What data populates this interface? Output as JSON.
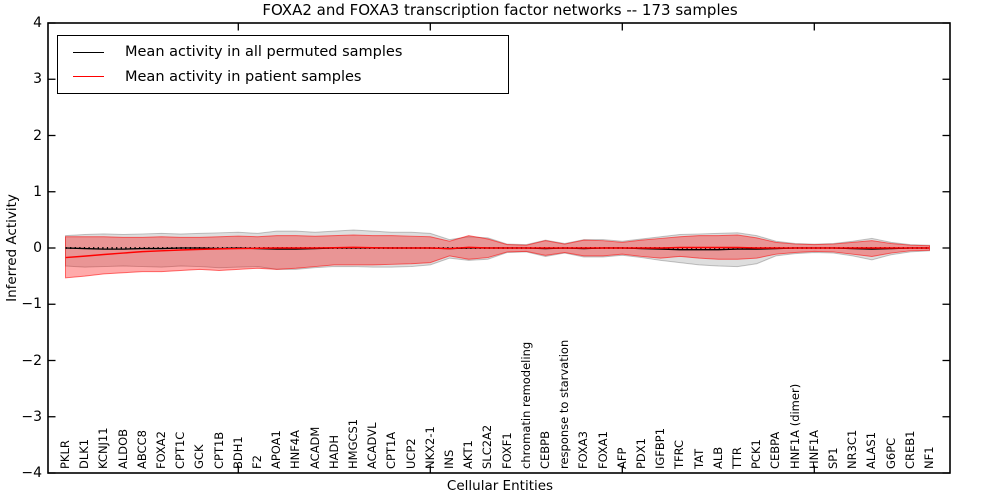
{
  "chart_data": {
    "type": "line",
    "title": "FOXA2 and FOXA3 transcription factor networks -- 173 samples",
    "xlabel": "Cellular Entities",
    "ylabel": "Inferred Activity",
    "ylim": [
      -4,
      4
    ],
    "grid": false,
    "legend_position": "upper left",
    "zero_line_dotted": true,
    "yticks": [
      {
        "v": 4,
        "label": "4"
      },
      {
        "v": 3,
        "label": "3"
      },
      {
        "v": 2,
        "label": "2"
      },
      {
        "v": 1,
        "label": "1"
      },
      {
        "v": 0,
        "label": "0"
      },
      {
        "v": -1,
        "label": "−1"
      },
      {
        "v": -2,
        "label": "−2"
      },
      {
        "v": -3,
        "label": "−3"
      },
      {
        "v": -4,
        "label": "−4"
      }
    ],
    "xticks_units": [
      10,
      20,
      30,
      40
    ],
    "categories": [
      "PKLR",
      "DLK1",
      "KCNJ11",
      "ALDOB",
      "ABCC8",
      "FOXA2",
      "CPT1C",
      "GCK",
      "CPT1B",
      "BDH1",
      "F2",
      "APOA1",
      "HNF4A",
      "ACADM",
      "HADH",
      "HMGCS1",
      "ACADVL",
      "CPT1A",
      "UCP2",
      "NKX2-1",
      "INS",
      "AKT1",
      "SLC2A2",
      "FOXF1",
      "chromatin remodeling",
      "CEBPB",
      "response to starvation",
      "FOXA3",
      "FOXA1",
      "AFP",
      "PDX1",
      "IGFBP1",
      "TFRC",
      "TAT",
      "ALB",
      "TTR",
      "PCK1",
      "CEBPA",
      "HNF1A (dimer)",
      "HNF1A",
      "SP1",
      "NR3C1",
      "ALAS1",
      "G6PC",
      "CREB1",
      "NF1"
    ],
    "series": [
      {
        "name": "Mean activity in all permuted samples",
        "color": "#000000",
        "width": 1.3,
        "values": [
          0,
          -0.01,
          -0.02,
          -0.02,
          -0.01,
          -0.01,
          0,
          0,
          -0.01,
          0,
          -0.01,
          -0.02,
          -0.02,
          -0.01,
          0,
          0,
          0,
          0,
          0,
          0,
          -0.01,
          0,
          0,
          0,
          0,
          -0.01,
          0,
          -0.01,
          0,
          0,
          -0.01,
          -0.02,
          -0.03,
          -0.03,
          -0.03,
          -0.02,
          -0.02,
          -0.01,
          0,
          0,
          0,
          -0.01,
          -0.02,
          -0.01,
          0,
          0
        ]
      },
      {
        "name": "Mean activity in patient samples",
        "color": "#ff0000",
        "width": 1.5,
        "values": [
          -0.17,
          -0.145,
          -0.115,
          -0.09,
          -0.065,
          -0.05,
          -0.035,
          -0.025,
          -0.015,
          -0.01,
          -0.005,
          0,
          0,
          0,
          0.005,
          0.01,
          0.005,
          0,
          0,
          0,
          -0.01,
          0.01,
          0,
          0,
          0,
          0,
          0,
          0,
          0,
          0,
          0,
          0,
          0.01,
          0.01,
          0.01,
          0.01,
          0,
          0,
          0,
          0,
          0,
          0,
          0,
          0,
          0,
          0
        ]
      }
    ],
    "bands": [
      {
        "name": "permuted-std-band",
        "fill": "rgba(0,0,0,0.13)",
        "edge": "rgba(0,0,0,0.22)",
        "upper": [
          0.22,
          0.24,
          0.25,
          0.24,
          0.25,
          0.26,
          0.25,
          0.26,
          0.27,
          0.28,
          0.26,
          0.3,
          0.3,
          0.28,
          0.3,
          0.32,
          0.3,
          0.28,
          0.28,
          0.26,
          0.15,
          0.2,
          0.18,
          0.07,
          0.06,
          0.14,
          0.08,
          0.15,
          0.15,
          0.12,
          0.16,
          0.2,
          0.24,
          0.25,
          0.26,
          0.27,
          0.22,
          0.12,
          0.08,
          0.07,
          0.08,
          0.12,
          0.17,
          0.1,
          0.06,
          0.05
        ],
        "lower": [
          -0.32,
          -0.34,
          -0.33,
          -0.32,
          -0.33,
          -0.34,
          -0.32,
          -0.33,
          -0.35,
          -0.34,
          -0.33,
          -0.38,
          -0.38,
          -0.35,
          -0.33,
          -0.33,
          -0.34,
          -0.34,
          -0.33,
          -0.3,
          -0.18,
          -0.22,
          -0.2,
          -0.08,
          -0.07,
          -0.15,
          -0.09,
          -0.16,
          -0.16,
          -0.13,
          -0.17,
          -0.22,
          -0.26,
          -0.3,
          -0.32,
          -0.33,
          -0.28,
          -0.14,
          -0.1,
          -0.08,
          -0.09,
          -0.14,
          -0.21,
          -0.12,
          -0.07,
          -0.05
        ]
      },
      {
        "name": "patient-std-band",
        "fill": "rgba(255,0,0,0.33)",
        "edge": "rgba(255,0,0,0.55)",
        "upper": [
          0.2,
          0.2,
          0.2,
          0.19,
          0.19,
          0.2,
          0.19,
          0.19,
          0.2,
          0.21,
          0.2,
          0.22,
          0.22,
          0.21,
          0.22,
          0.23,
          0.22,
          0.22,
          0.21,
          0.2,
          0.12,
          0.22,
          0.16,
          0.06,
          0.05,
          0.13,
          0.07,
          0.14,
          0.13,
          0.1,
          0.14,
          0.17,
          0.2,
          0.22,
          0.22,
          0.23,
          0.18,
          0.1,
          0.07,
          0.06,
          0.07,
          0.1,
          0.13,
          0.08,
          0.05,
          0.04
        ],
        "lower": [
          -0.53,
          -0.5,
          -0.46,
          -0.44,
          -0.42,
          -0.42,
          -0.4,
          -0.38,
          -0.4,
          -0.38,
          -0.36,
          -0.38,
          -0.36,
          -0.33,
          -0.3,
          -0.3,
          -0.3,
          -0.29,
          -0.28,
          -0.26,
          -0.14,
          -0.2,
          -0.17,
          -0.07,
          -0.06,
          -0.13,
          -0.08,
          -0.14,
          -0.14,
          -0.11,
          -0.15,
          -0.18,
          -0.15,
          -0.18,
          -0.2,
          -0.2,
          -0.18,
          -0.11,
          -0.08,
          -0.06,
          -0.07,
          -0.11,
          -0.15,
          -0.09,
          -0.05,
          -0.04
        ]
      }
    ]
  }
}
